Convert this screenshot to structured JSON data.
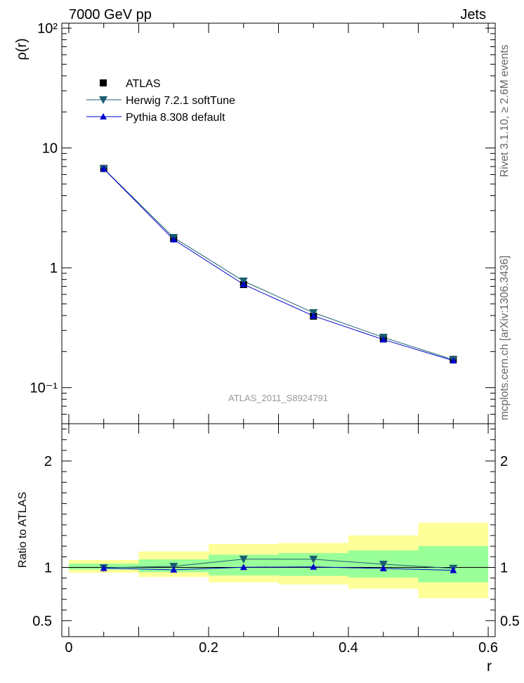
{
  "header": {
    "left": "7000 GeV pp",
    "right": "Jets"
  },
  "side_text": {
    "rivet_version": "Rivet 3.1.10, ≥ 2.6M events",
    "source": "mcplots.cern.ch [arXiv:1306.3436]"
  },
  "chart_data": [
    {
      "type": "line",
      "panel": "main",
      "analysis_label": "ATLAS_2011_S8924791",
      "ylabel": "ρ(r)",
      "xlabel": "r",
      "xlim": [
        -0.01,
        0.61
      ],
      "ylim": [
        0.05,
        110
      ],
      "yscale": "log",
      "y_tick_labels": [
        "10⁻¹",
        "1",
        "10",
        "10²"
      ],
      "legend_position": "top-left",
      "x": [
        0.05,
        0.15,
        0.25,
        0.35,
        0.45,
        0.55
      ],
      "series": [
        {
          "name": "ATLAS",
          "marker": "square",
          "color": "#000000",
          "values": [
            6.75,
            1.76,
            0.725,
            0.395,
            0.255,
            0.172
          ]
        },
        {
          "name": "Herwig 7.2.1 softTune",
          "marker": "triangle-down",
          "color": "#1a5f70",
          "values": [
            6.72,
            1.79,
            0.775,
            0.422,
            0.263,
            0.171
          ]
        },
        {
          "name": "Pythia 8.308 default",
          "marker": "triangle-up",
          "color": "#0000cc",
          "values": [
            6.7,
            1.72,
            0.727,
            0.397,
            0.252,
            0.168
          ]
        }
      ]
    },
    {
      "type": "line",
      "panel": "ratio",
      "ylabel": "Ratio to ATLAS",
      "xlabel": "r",
      "xlim": [
        -0.01,
        0.61
      ],
      "ylim": [
        0.35,
        2.35
      ],
      "x_tick_labels": [
        "0",
        "0.2",
        "0.4",
        "0.6"
      ],
      "y_tick_labels": [
        "0.5",
        "1",
        "2"
      ],
      "x_edges": [
        0.0,
        0.1,
        0.2,
        0.3,
        0.4,
        0.5,
        0.6
      ],
      "band_yellow": {
        "low": [
          0.95,
          0.91,
          0.86,
          0.84,
          0.8,
          0.71
        ],
        "high": [
          1.07,
          1.15,
          1.22,
          1.23,
          1.3,
          1.42
        ]
      },
      "band_green": {
        "low": [
          0.98,
          0.955,
          0.925,
          0.92,
          0.905,
          0.86
        ],
        "high": [
          1.035,
          1.075,
          1.12,
          1.135,
          1.16,
          1.2
        ]
      },
      "x": [
        0.05,
        0.15,
        0.25,
        0.35,
        0.45,
        0.55
      ],
      "series": [
        {
          "name": "Herwig 7.2.1 softTune",
          "marker": "triangle-down",
          "color": "#1a5f70",
          "values": [
            0.997,
            1.01,
            1.078,
            1.077,
            1.03,
            0.992
          ]
        },
        {
          "name": "Pythia 8.308 default",
          "marker": "triangle-up",
          "color": "#0000cc",
          "values": [
            0.993,
            0.978,
            1.002,
            1.005,
            0.99,
            0.973
          ]
        }
      ]
    }
  ]
}
